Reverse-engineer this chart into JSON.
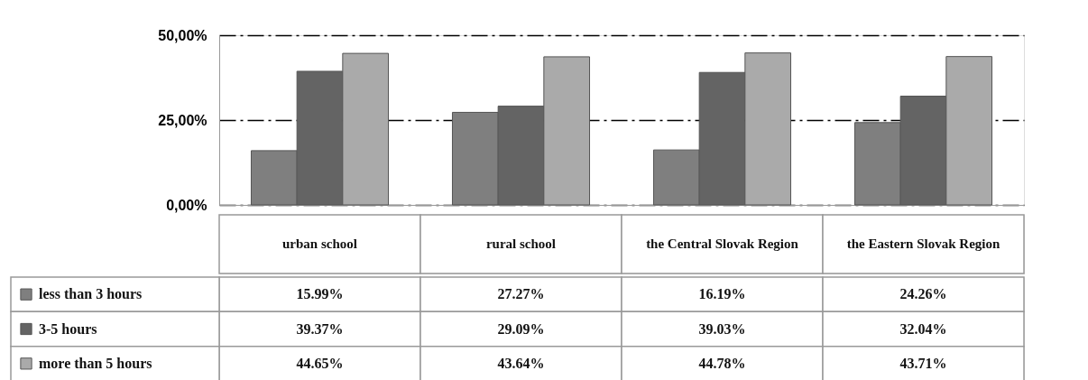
{
  "chart_data": {
    "type": "bar",
    "categories": [
      "urban school",
      "rural school",
      "the Central Slovak Region",
      "the Eastern Slovak Region"
    ],
    "series": [
      {
        "name": "less than 3 hours",
        "color": "#7f7f7f",
        "values": [
          15.99,
          27.27,
          16.19,
          24.26
        ],
        "value_labels": [
          "15.99%",
          "27.27%",
          "16.19%",
          "24.26%"
        ]
      },
      {
        "name": "3-5 hours",
        "color": "#646464",
        "values": [
          39.37,
          29.09,
          39.03,
          32.04
        ],
        "value_labels": [
          "39.37%",
          "29.09%",
          "39.03%",
          "32.04%"
        ]
      },
      {
        "name": "more than 5 hours",
        "color": "#aaaaaa",
        "values": [
          44.65,
          43.64,
          44.78,
          43.71
        ],
        "value_labels": [
          "44.65%",
          "43.64%",
          "44.78%",
          "43.71%"
        ]
      }
    ],
    "ylim": [
      0,
      50
    ],
    "yticks": [
      {
        "value": 0,
        "label": "0,00%"
      },
      {
        "value": 25,
        "label": "25,00%"
      },
      {
        "value": 50,
        "label": "50,00%"
      }
    ],
    "grid": "y",
    "legend": "bottom left"
  }
}
